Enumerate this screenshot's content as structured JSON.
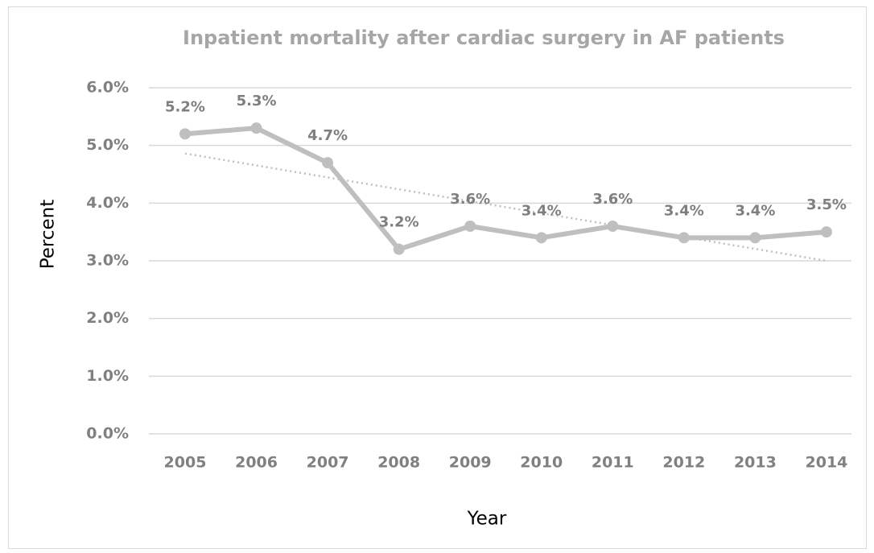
{
  "chart_data": {
    "type": "line",
    "title": "Inpatient mortality after cardiac surgery in AF patients",
    "xlabel": "Year",
    "ylabel": "Percent",
    "categories": [
      "2005",
      "2006",
      "2007",
      "2008",
      "2009",
      "2010",
      "2011",
      "2012",
      "2013",
      "2014"
    ],
    "series": [
      {
        "name": "Inpatient mortality",
        "color": "#bfbfbf",
        "values": [
          5.2,
          5.3,
          4.7,
          3.2,
          3.6,
          3.4,
          3.6,
          3.4,
          3.4,
          3.5
        ],
        "value_labels": [
          "5.2%",
          "5.3%",
          "4.7%",
          "3.2%",
          "3.6%",
          "3.4%",
          "3.6%",
          "3.4%",
          "3.4%",
          "3.5%"
        ]
      }
    ],
    "trendline": "linear",
    "ylim": [
      0,
      6
    ],
    "yticks": [
      {
        "value": 0,
        "label": "0.0%"
      },
      {
        "value": 1,
        "label": "1.0%"
      },
      {
        "value": 2,
        "label": "2.0%"
      },
      {
        "value": 3,
        "label": "3.0%"
      },
      {
        "value": 4,
        "label": "4.0%"
      },
      {
        "value": 5,
        "label": "5.0%"
      },
      {
        "value": 6,
        "label": "6.0%"
      }
    ],
    "grid": true
  }
}
